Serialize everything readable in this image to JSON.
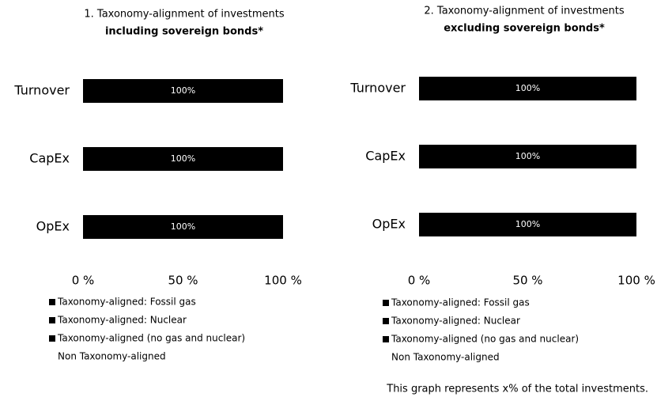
{
  "chart_data": [
    {
      "type": "stacked-bar-horizontal",
      "title": "1. Taxonomy-alignment of investments",
      "subtitle": "including sovereign bonds*",
      "categories": [
        "Turnover",
        "CapEx",
        "OpEx"
      ],
      "series": [
        {
          "name": "Taxonomy-aligned: Fossil gas",
          "color": "#000000",
          "values": [
            0,
            0,
            0
          ]
        },
        {
          "name": "Taxonomy-aligned: Nuclear",
          "color": "#000000",
          "values": [
            0,
            0,
            0
          ]
        },
        {
          "name": "Taxonomy-aligned (no gas and nuclear)",
          "color": "#000000",
          "values": [
            0,
            0,
            0
          ]
        },
        {
          "name": "Non Taxonomy-aligned",
          "color": "#000000",
          "legend_marker": false,
          "values": [
            100,
            100,
            100
          ],
          "value_labels": [
            "100%",
            "100%",
            "100%"
          ]
        }
      ],
      "xlim": [
        0,
        100
      ],
      "xticks": [
        {
          "value": 0,
          "label": "0 %"
        },
        {
          "value": 50,
          "label": "50 %"
        },
        {
          "value": 100,
          "label": "100 %"
        }
      ]
    },
    {
      "type": "stacked-bar-horizontal",
      "title": "2. Taxonomy-alignment of investments",
      "subtitle": "excluding sovereign bonds*",
      "categories": [
        "Turnover",
        "CapEx",
        "OpEx"
      ],
      "series": [
        {
          "name": "Taxonomy-aligned: Fossil gas",
          "color": "#000000",
          "values": [
            0,
            0,
            0
          ]
        },
        {
          "name": "Taxonomy-aligned: Nuclear",
          "color": "#000000",
          "values": [
            0,
            0,
            0
          ]
        },
        {
          "name": "Taxonomy-aligned (no gas and nuclear)",
          "color": "#000000",
          "values": [
            0,
            0,
            0
          ]
        },
        {
          "name": "Non Taxonomy-aligned",
          "color": "#000000",
          "legend_marker": false,
          "values": [
            100,
            100,
            100
          ],
          "value_labels": [
            "100%",
            "100%",
            "100%"
          ]
        }
      ],
      "xlim": [
        0,
        100
      ],
      "xticks": [
        {
          "value": 0,
          "label": "0 %"
        },
        {
          "value": 50,
          "label": "50 %"
        },
        {
          "value": 100,
          "label": "100 %"
        }
      ],
      "note": "This graph represents x% of the total investments."
    }
  ]
}
